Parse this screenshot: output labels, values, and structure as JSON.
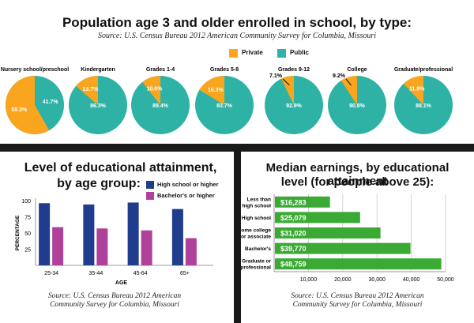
{
  "top": {
    "title": "Population age 3 and older enrolled in school, by type:",
    "source": "Source: U.S. Census Bureau 2012 American Community Survey for Columbia, Missouri",
    "legend": {
      "private": "Private",
      "public": "Public"
    }
  },
  "bottom_left": {
    "title_line1": "Level of educational attainment,",
    "title_line2": "by age group:",
    "legend": {
      "hs": "High school or higher",
      "ba": "Bachelor's or higher"
    },
    "ylabel": "PERCENTAGE",
    "xlabel": "AGE",
    "source_line1": "Source: U.S. Census Bureau 2012 American",
    "source_line2": "Community Survey for Columbia, Missouri"
  },
  "bottom_right": {
    "title_line1": "Median earnings, by educational attainment",
    "title_line2": "level (for people above 25):",
    "source_line1": "Source: U.S. Census Bureau 2012 American",
    "source_line2": "Community Survey for Columbia, Missouri"
  },
  "colors": {
    "private": "#f9a51d",
    "public": "#2fb2a6",
    "hs": "#1f3d8c",
    "ba": "#b0419a",
    "earn": "#3aaa35",
    "divider": "#1a1a1a"
  },
  "chart_data": [
    {
      "type": "pie",
      "title": "Population age 3 and older enrolled in school, by type:",
      "series_names": [
        "Private",
        "Public"
      ],
      "pies": [
        {
          "label": "Nursery school/preschool",
          "private": 58.3,
          "public": 41.7,
          "private_label": "58.3%",
          "public_label": "41.7%"
        },
        {
          "label": "Kindergarten",
          "private": 13.7,
          "public": 86.3,
          "private_label": "13.7%",
          "public_label": "86.3%"
        },
        {
          "label": "Grades 1-4",
          "private": 10.6,
          "public": 89.4,
          "private_label": "10.6%",
          "public_label": "89.4%"
        },
        {
          "label": "Grades 5-8",
          "private": 16.3,
          "public": 83.7,
          "private_label": "16.3%",
          "public_label": "83.7%"
        },
        {
          "label": "Grades 9-12",
          "private": 7.1,
          "public": 92.9,
          "private_label": "7.1%",
          "public_label": "92.9%"
        },
        {
          "label": "College",
          "private": 9.2,
          "public": 90.8,
          "private_label": "9.2%",
          "public_label": "90.8%"
        },
        {
          "label": "Graduate/professional",
          "private": 11.9,
          "public": 88.1,
          "private_label": "11.9%",
          "public_label": "88.1%"
        }
      ]
    },
    {
      "type": "bar",
      "title": "Level of educational attainment, by age group:",
      "categories": [
        "25-34",
        "35-44",
        "45-64",
        "65+"
      ],
      "series": [
        {
          "name": "High school or higher",
          "values": [
            96,
            94,
            97,
            87
          ]
        },
        {
          "name": "Bachelor's or higher",
          "values": [
            59,
            57,
            54,
            42
          ]
        }
      ],
      "xlabel": "AGE",
      "ylabel": "PERCENTAGE",
      "ylim": [
        0,
        100
      ],
      "yticks": [
        25,
        50,
        75,
        100
      ]
    },
    {
      "type": "bar",
      "orientation": "horizontal",
      "title": "Median earnings, by educational attainment level (for people above 25):",
      "categories": [
        [
          "Less than",
          "high school"
        ],
        [
          "High school"
        ],
        [
          "Some college",
          "or associate"
        ],
        [
          "Bachelor's"
        ],
        [
          "Graduate or",
          "professional"
        ]
      ],
      "values": [
        16283,
        25079,
        31020,
        39770,
        48759
      ],
      "value_labels": [
        "$16,283",
        "$25,079",
        "$31,020",
        "$39,770",
        "$48,759"
      ],
      "xlim": [
        0,
        50000
      ],
      "xticks": [
        10000,
        20000,
        30000,
        40000,
        50000
      ],
      "xtick_labels": [
        "10,000",
        "20,000",
        "30,000",
        "40,000",
        "50,000"
      ]
    }
  ]
}
